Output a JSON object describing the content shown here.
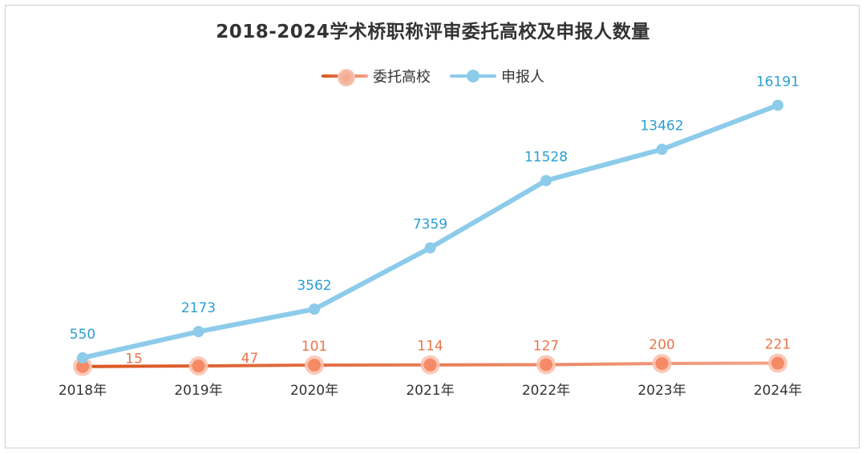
{
  "title": "2018-2024学术桥职称评审委托高校及申报人数量",
  "legend": {
    "series1_label": "委托高校",
    "series2_label": "申报人"
  },
  "colors": {
    "series1": "#e8643a",
    "series1_light": "#f4a48a",
    "series2": "#8ccbea",
    "series2_label": "#2a9fd0",
    "series1_label": "#e8764a",
    "axis_text": "#333333"
  },
  "chart_data": {
    "type": "line",
    "categories": [
      "2018年",
      "2019年",
      "2020年",
      "2021年",
      "2022年",
      "2023年",
      "2024年"
    ],
    "series": [
      {
        "name": "委托高校",
        "values": [
          15,
          47,
          101,
          114,
          127,
          200,
          221
        ]
      },
      {
        "name": "申报人",
        "values": [
          550,
          2173,
          3562,
          7359,
          11528,
          13462,
          16191
        ]
      }
    ],
    "title": "2018-2024学术桥职称评审委托高校及申报人数量",
    "xlabel": "",
    "ylabel": "",
    "ylim": [
      0,
      18000
    ],
    "grid": false,
    "legend_position": "top"
  }
}
